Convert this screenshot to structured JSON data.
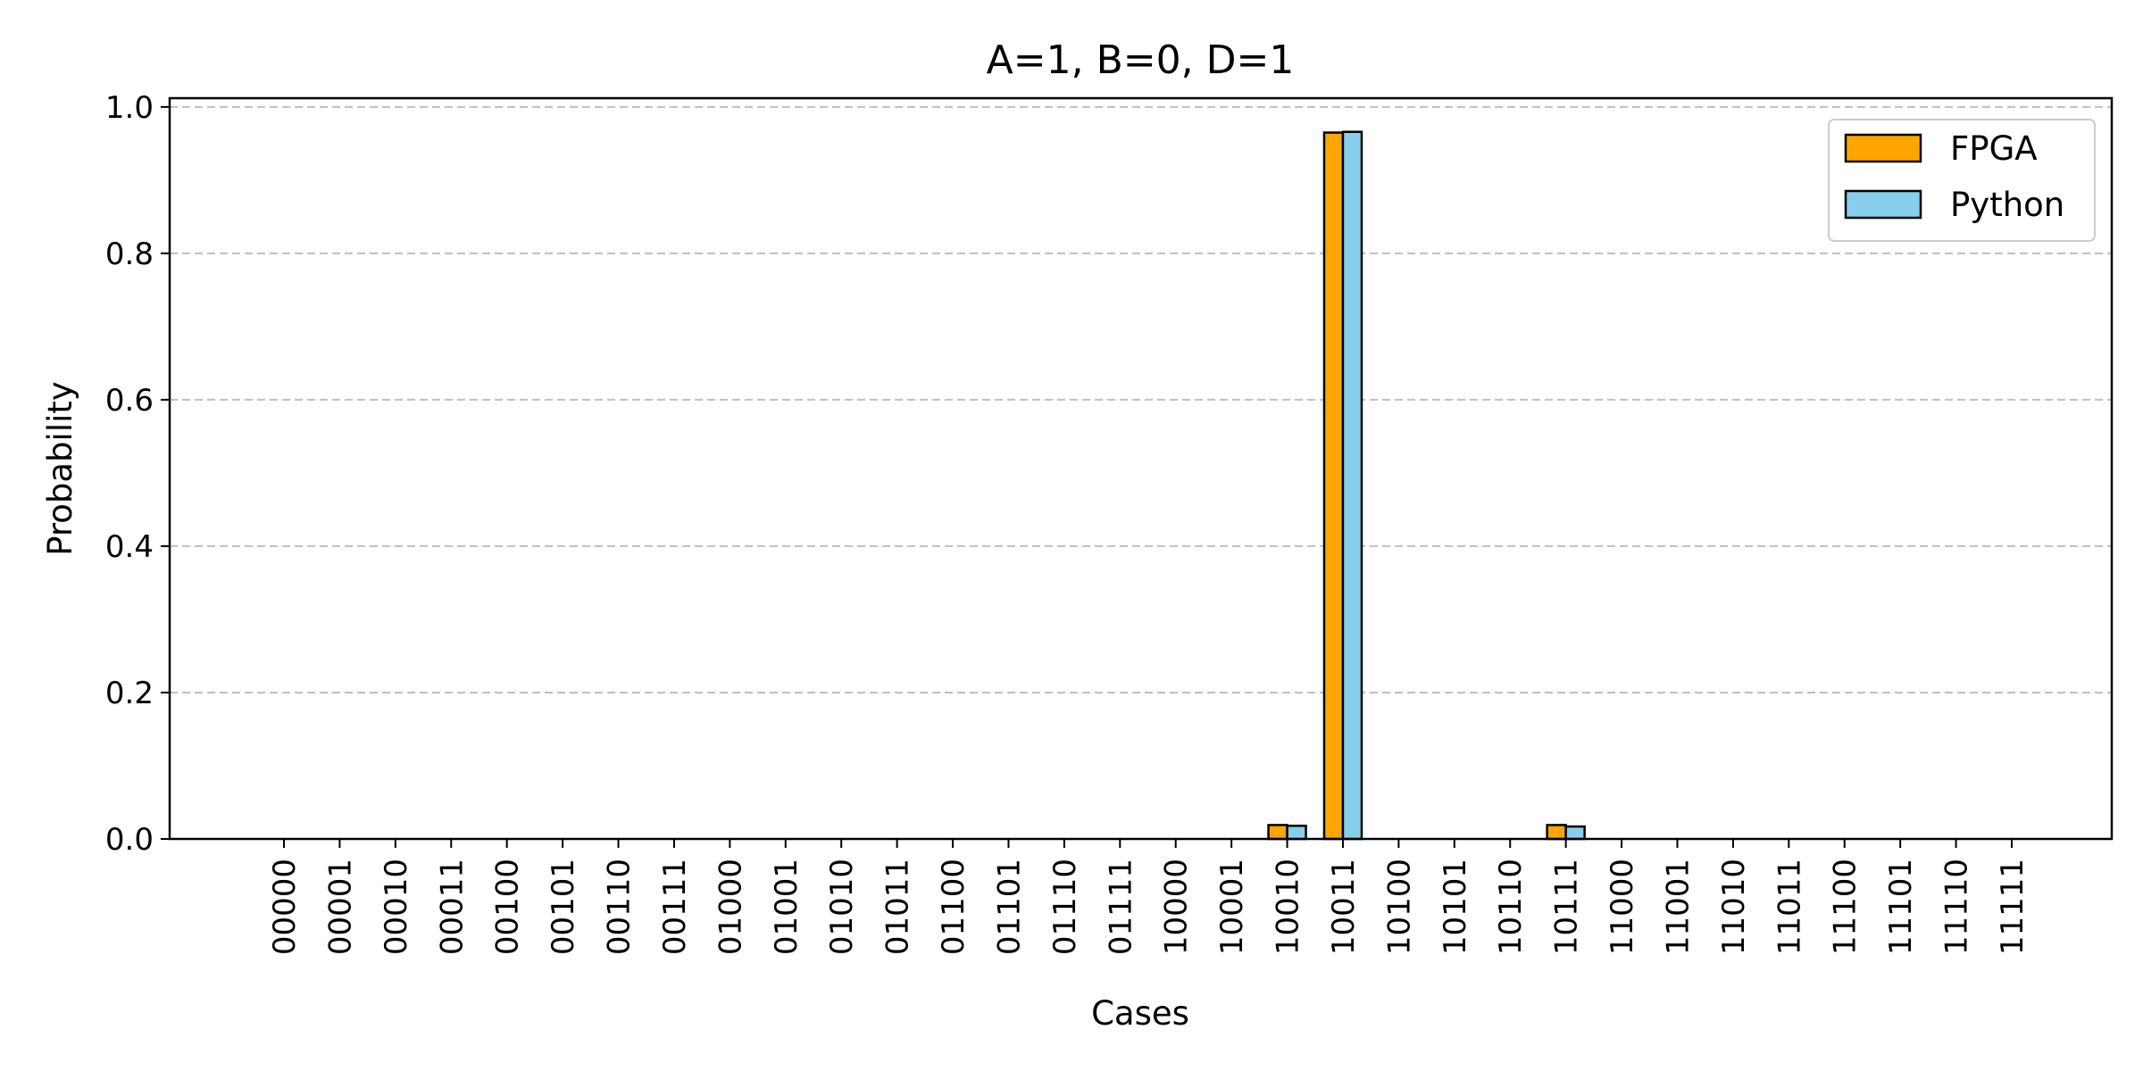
{
  "chart_data": {
    "type": "bar",
    "title": "A=1, B=0, D=1",
    "xlabel": "Cases",
    "ylabel": "Probability",
    "ylim": [
      0,
      1.012
    ],
    "yticks": [
      "0.0",
      "0.2",
      "0.4",
      "0.6",
      "0.8",
      "1.0"
    ],
    "grid": "y-dashed",
    "legend_position": "top-right",
    "categories": [
      "00000",
      "00001",
      "00010",
      "00011",
      "00100",
      "00101",
      "00110",
      "00111",
      "01000",
      "01001",
      "01010",
      "01011",
      "01100",
      "01101",
      "01110",
      "01111",
      "10000",
      "10001",
      "10010",
      "10011",
      "10100",
      "10101",
      "10110",
      "10111",
      "11000",
      "11001",
      "11010",
      "11011",
      "11100",
      "11101",
      "11110",
      "11111"
    ],
    "series": [
      {
        "name": "FPGA",
        "color": "#FFA500",
        "values": [
          0,
          0,
          0,
          0,
          0,
          0,
          0,
          0,
          0,
          0,
          0,
          0,
          0,
          0,
          0,
          0,
          0,
          0,
          0.019,
          0.965,
          0,
          0,
          0,
          0.019,
          0,
          0,
          0,
          0,
          0,
          0,
          0,
          0
        ]
      },
      {
        "name": "Python",
        "color": "#87CEEB",
        "values": [
          0,
          0,
          0,
          0,
          0,
          0,
          0,
          0,
          0,
          0,
          0,
          0,
          0,
          0,
          0,
          0,
          0,
          0,
          0.018,
          0.966,
          0,
          0,
          0,
          0.017,
          0,
          0,
          0,
          0,
          0,
          0,
          0,
          0
        ]
      }
    ]
  }
}
